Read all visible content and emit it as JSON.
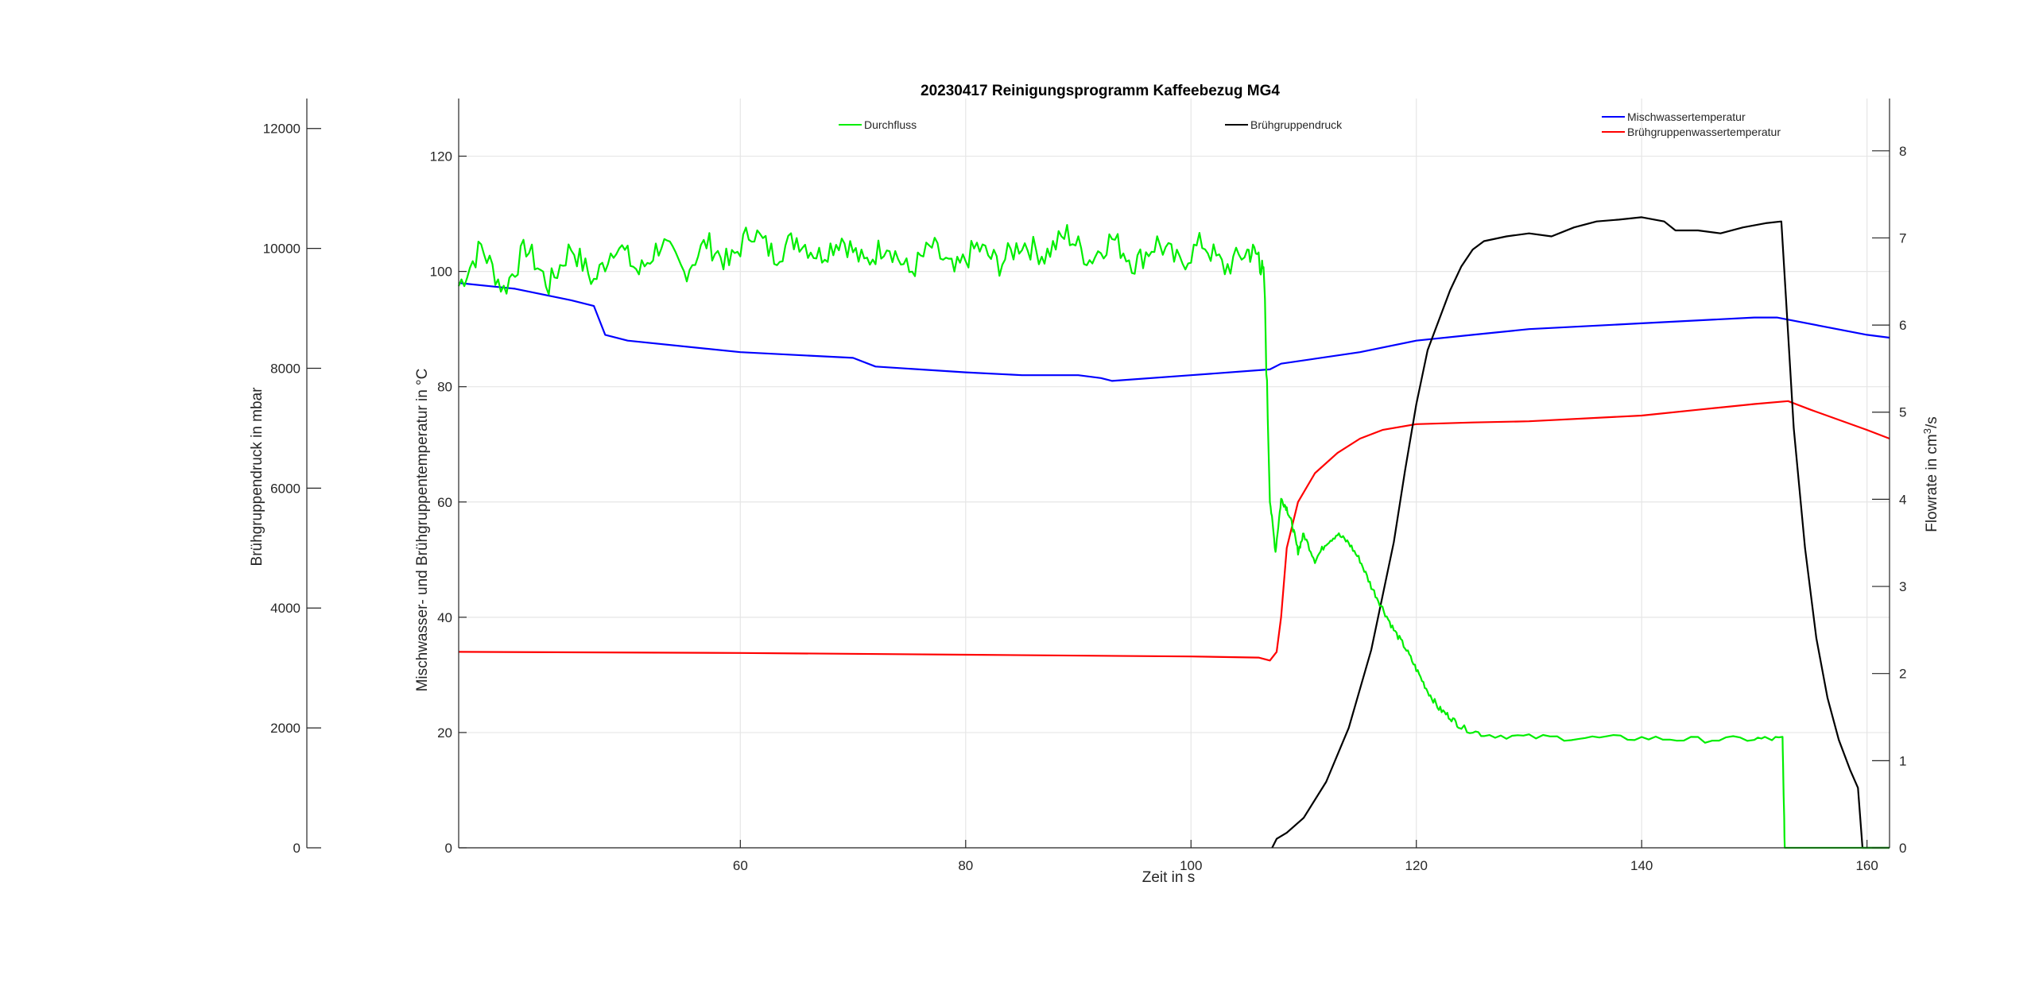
{
  "chart_data": {
    "type": "line",
    "title": "20230417 Reinigungsprogramm  Kaffeebezug MG4",
    "xlabel": "Zeit in s",
    "xlim": [
      35,
      162
    ],
    "xticks": [
      60,
      80,
      100,
      120,
      140,
      160
    ],
    "grid": true,
    "axes": {
      "left_temperature": {
        "label": "Mischwasser- und Brühgruppentemperatur in °C",
        "ylim": [
          0,
          130
        ],
        "ticks": [
          0,
          20,
          40,
          60,
          80,
          100,
          120
        ]
      },
      "left_pressure": {
        "label": "Brühgruppendruck in mbar",
        "ylim": [
          0,
          12500
        ],
        "ticks": [
          0,
          2000,
          4000,
          6000,
          8000,
          10000,
          12000
        ]
      },
      "right_flowrate": {
        "label_main": "Flowrate in cm",
        "label_sup": "3",
        "label_tail": "/s",
        "ylim": [
          0,
          8.6
        ],
        "ticks": [
          0,
          1,
          2,
          3,
          4,
          5,
          6,
          7,
          8
        ]
      }
    },
    "legends": [
      {
        "entries": [
          "Durchfluss"
        ],
        "placement": "top-left"
      },
      {
        "entries": [
          "Brühgruppendruck"
        ],
        "placement": "top-center"
      },
      {
        "entries": [
          "Mischwassertemperatur",
          "Brühgruppenwassertemperatur"
        ],
        "placement": "top-right"
      }
    ],
    "series": [
      {
        "name": "Mischwassertemperatur",
        "color": "#0000ff",
        "axis": "left_temperature",
        "x": [
          35,
          40,
          45,
          47,
          48,
          50,
          60,
          70,
          72,
          80,
          85,
          90,
          92,
          93,
          100,
          107,
          108,
          115,
          120,
          125,
          130,
          140,
          150,
          152,
          160,
          162
        ],
        "y": [
          98,
          97,
          95,
          94,
          89,
          88,
          86,
          85,
          83.5,
          82.5,
          82,
          82,
          81.5,
          81,
          82,
          83,
          84,
          86,
          88,
          89,
          90,
          91,
          92,
          92,
          89,
          88.5
        ]
      },
      {
        "name": "Brühgruppenwassertemperatur",
        "color": "#ff0000",
        "axis": "left_temperature",
        "x": [
          35,
          60,
          80,
          100,
          106,
          107,
          107.6,
          108,
          108.5,
          109.5,
          111,
          113,
          115,
          117,
          120,
          125,
          130,
          140,
          145,
          150,
          153,
          155,
          160,
          162
        ],
        "y": [
          34,
          33.8,
          33.5,
          33.2,
          33,
          32.5,
          34,
          40,
          52,
          60,
          65,
          68.5,
          71,
          72.5,
          73.5,
          73.8,
          74,
          75,
          76,
          77,
          77.5,
          76,
          72.5,
          71
        ]
      },
      {
        "name": "Brühgruppendruck",
        "color": "#000000",
        "axis": "left_pressure",
        "x": [
          107.2,
          107.6,
          108.5,
          110,
          112,
          114,
          116,
          118,
          119,
          120,
          121,
          123,
          124,
          125,
          126,
          128,
          130,
          132,
          134,
          136,
          138,
          140,
          142,
          143,
          145,
          147,
          149,
          151,
          152.4,
          152.8,
          153.5,
          154.5,
          155.5,
          156.5,
          157.5,
          158.5,
          159.2,
          159.6,
          160,
          162
        ],
        "y": [
          0,
          150,
          250,
          500,
          1100,
          2000,
          3300,
          5100,
          6300,
          7400,
          8300,
          9300,
          9700,
          9980,
          10120,
          10200,
          10250,
          10200,
          10350,
          10450,
          10480,
          10520,
          10450,
          10300,
          10300,
          10250,
          10350,
          10420,
          10450,
          9200,
          7000,
          5000,
          3500,
          2500,
          1800,
          1300,
          1000,
          0,
          0,
          0
        ]
      },
      {
        "name": "Durchfluss",
        "color": "#00ee00",
        "axis": "right_flowrate",
        "x": [
          35,
          37,
          39,
          41,
          43,
          45,
          47,
          49,
          51,
          53,
          55,
          57,
          59,
          61,
          63,
          65,
          67,
          69,
          71,
          73,
          75,
          77,
          79,
          81,
          83,
          85,
          87,
          89,
          91,
          93,
          95,
          97,
          99,
          101,
          103,
          105,
          106,
          106.5,
          107,
          107.5,
          108,
          108.5,
          109,
          109.5,
          110,
          111,
          112,
          113,
          114,
          115,
          116,
          117,
          118,
          119,
          120,
          121,
          122,
          123,
          124,
          126,
          130,
          135,
          140,
          145,
          150,
          152.5,
          152.7,
          153,
          162
        ],
        "y": [
          6.45,
          6.9,
          6.4,
          6.9,
          6.45,
          6.9,
          6.5,
          6.95,
          6.6,
          6.95,
          6.6,
          6.95,
          6.7,
          7.1,
          6.8,
          7.0,
          6.8,
          7.0,
          6.7,
          6.95,
          6.6,
          6.9,
          6.6,
          6.9,
          6.7,
          6.95,
          6.8,
          7.05,
          6.75,
          7.0,
          6.7,
          6.95,
          6.7,
          6.95,
          6.65,
          6.85,
          6.8,
          6.5,
          4.0,
          3.4,
          4.0,
          3.9,
          3.7,
          3.4,
          3.6,
          3.3,
          3.5,
          3.6,
          3.5,
          3.3,
          3.0,
          2.75,
          2.5,
          2.3,
          2.05,
          1.8,
          1.6,
          1.5,
          1.38,
          1.3,
          1.27,
          1.26,
          1.26,
          1.24,
          1.25,
          1.25,
          0,
          0,
          0
        ],
        "noise": 0.12
      }
    ]
  }
}
